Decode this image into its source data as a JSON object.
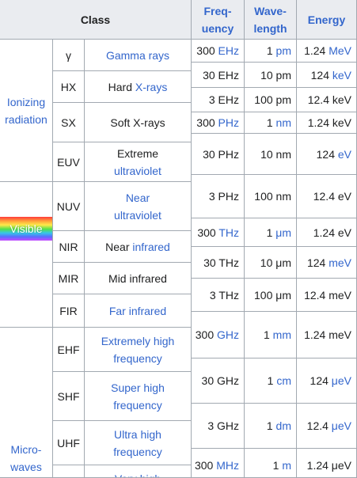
{
  "headers": {
    "class": "Class",
    "frequency": "Freq-uency",
    "frequency_line1": "Freq-",
    "frequency_line2": "uency",
    "wavelength_line1": "Wave-",
    "wavelength_line2": "length",
    "energy": "Energy"
  },
  "groups": {
    "ionizing": {
      "line1": "Ionizing",
      "line2": "radiation"
    },
    "visible": "Visible",
    "microwaves": {
      "line1": "Micro-",
      "line2": "waves"
    }
  },
  "rows": [
    {
      "abbr": "γ",
      "name": [
        "Gamma rays"
      ],
      "name_link": true,
      "freq": "300",
      "freq_unit": "EHz",
      "wave": "1",
      "wave_unit": "pm",
      "energy": "1.24",
      "energy_unit": "MeV"
    },
    {
      "abbr": "HX",
      "name_plain": "Hard ",
      "name_link_part": "X-rays",
      "freq": "30 EHz",
      "wave": "10 pm",
      "energy": "124",
      "energy_unit": "keV"
    },
    {
      "freq": "3 EHz",
      "wave": "100 pm",
      "energy_text": "12.4 keV"
    },
    {
      "abbr": "SX",
      "name_text": "Soft X-rays",
      "freq": "300",
      "freq_unit": "PHz",
      "wave": "1",
      "wave_unit": "nm",
      "energy_text": "1.24 keV"
    },
    {
      "abbr": "EUV",
      "name_line1": "Extreme",
      "name_line2": "ultraviolet",
      "freq": "30 PHz",
      "wave": "10 nm",
      "energy": "124",
      "energy_unit": "eV"
    },
    {
      "abbr": "NUV",
      "name_line1": "Near",
      "name_line2": "ultraviolet",
      "freq": "3 PHz",
      "wave": "100 nm",
      "energy_text": "12.4 eV"
    },
    {
      "freq": "300",
      "freq_unit": "THz",
      "wave": "1",
      "wave_unit": "μm",
      "energy_text": "1.24 eV"
    },
    {
      "abbr": "NIR",
      "name_plain": "Near ",
      "name_link_part": "infrared",
      "freq": "30 THz",
      "wave": "10 μm",
      "energy": "124",
      "energy_unit": "meV"
    },
    {
      "abbr": "MIR",
      "name_text": "Mid infrared",
      "freq": "3 THz",
      "wave": "100 μm",
      "energy_text": "12.4 meV"
    },
    {
      "abbr": "FIR",
      "name_text": "Far infrared"
    },
    {
      "abbr": "EHF",
      "name_line1": "Extremely high",
      "name_line2": "frequency",
      "freq": "300",
      "freq_unit": "GHz",
      "wave": "1",
      "wave_unit": "mm",
      "energy_text": "1.24 meV"
    },
    {
      "abbr": "SHF",
      "name_line1": "Super high",
      "name_line2": "frequency",
      "freq": "30 GHz",
      "wave": "1",
      "wave_unit": "cm",
      "energy": "124",
      "energy_unit": "μeV"
    },
    {
      "abbr": "UHF",
      "name_line1": "Ultra high",
      "name_line2": "frequency",
      "freq": "3 GHz",
      "wave": "1",
      "wave_unit": "dm",
      "energy": "12.4",
      "energy_unit": "μeV"
    },
    {
      "name_partial": "Very high",
      "freq": "300",
      "freq_unit": "MHz",
      "wave": "1",
      "wave_unit": "m",
      "energy_text": "1.24 μeV"
    }
  ],
  "colors": {
    "header_bg": "#eaecf0",
    "link": "#3366cc",
    "border": "#a2a9b1"
  }
}
